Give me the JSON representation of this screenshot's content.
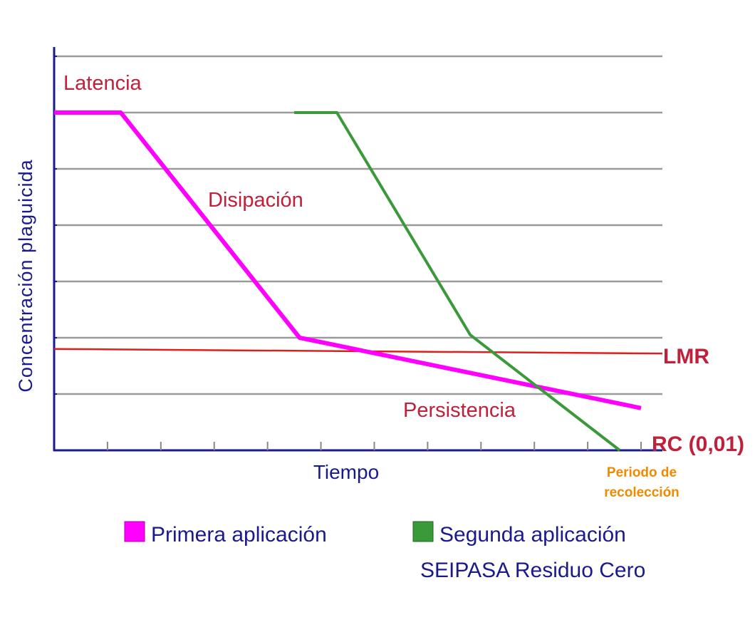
{
  "chart_data": {
    "type": "line",
    "title": "",
    "xlabel": "Tiempo",
    "ylabel": "Concentración plaguicida",
    "xlim": [
      0,
      11.4
    ],
    "ylim": [
      0,
      7
    ],
    "grid": true,
    "legend_position": "bottom",
    "x_ticks_count": 11,
    "series": [
      {
        "name": "Primera aplicación",
        "color": "#ff00ff",
        "points": [
          [
            0,
            6.0
          ],
          [
            1.25,
            6.0
          ],
          [
            4.6,
            2.0
          ],
          [
            11.0,
            0.75
          ]
        ]
      },
      {
        "name": "Segunda aplicación",
        "color": "#3a9a3a",
        "points": [
          [
            4.5,
            6.0
          ],
          [
            5.3,
            6.0
          ],
          [
            7.8,
            2.05
          ],
          [
            10.6,
            0.0
          ]
        ]
      }
    ],
    "reference_lines": [
      {
        "label": "LMR",
        "color": "#e01e1e",
        "points": [
          [
            0,
            1.8
          ],
          [
            11.4,
            1.72
          ]
        ]
      },
      {
        "label": "RC (0,01)",
        "color": "#c0203a",
        "y": 0
      }
    ],
    "annotations": [
      {
        "text": "Latencia",
        "color": "#c0203a"
      },
      {
        "text": "Disipación",
        "color": "#c0203a"
      },
      {
        "text": "Persistencia",
        "color": "#c0203a"
      },
      {
        "text": "Periodo de recolección",
        "lines": [
          "Periodo de",
          "recolección"
        ],
        "color": "#f08a00"
      }
    ],
    "legend": {
      "items": [
        {
          "label": "Primera aplicación",
          "color": "#ff00ff"
        },
        {
          "label": "Segunda aplicación",
          "color": "#3a9a3a"
        }
      ],
      "subtitle": "SEIPASA Residuo Cero"
    },
    "colors": {
      "axis": "#1a1a8c",
      "grid": "#9a9a9a",
      "axis_label": "#1a1a8c"
    }
  }
}
